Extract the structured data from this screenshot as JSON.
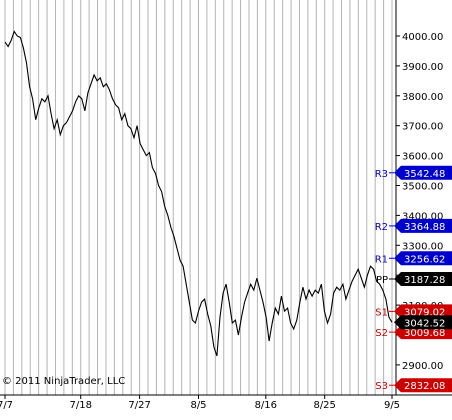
{
  "copyright": "© 2011 NinjaTrader, LLC",
  "chart_data": {
    "type": "line",
    "title": "",
    "xlabel": "",
    "ylabel": "",
    "ylim": [
      2830,
      4060
    ],
    "y_ticks": [
      "4000.00",
      "3900.00",
      "3800.00",
      "3700.00",
      "3600.00",
      "3500.00",
      "3400.00",
      "3300.00",
      "3200.00",
      "3100.00",
      "3000.00",
      "2900.00"
    ],
    "y_tick_values": [
      4000,
      3900,
      3800,
      3700,
      3600,
      3500,
      3400,
      3300,
      3200,
      3100,
      3000,
      2900
    ],
    "x_tick_labels": [
      "7/7",
      "7/18",
      "7/27",
      "8/5",
      "8/16",
      "8/25",
      "9/5"
    ],
    "x_tick_index": [
      0,
      9,
      16,
      23,
      31,
      38,
      46
    ],
    "vertical_grid": true,
    "horizontal_grid": false,
    "series": [
      {
        "color": "#000000",
        "values": [
          3980,
          3965,
          3985,
          4015,
          4000,
          3995,
          3960,
          3910,
          3830,
          3790,
          3720,
          3760,
          3790,
          3780,
          3800,
          3740,
          3690,
          3720,
          3670,
          3700,
          3710,
          3730,
          3750,
          3780,
          3800,
          3790,
          3750,
          3810,
          3840,
          3870,
          3850,
          3860,
          3830,
          3840,
          3820,
          3790,
          3770,
          3760,
          3720,
          3740,
          3700,
          3690,
          3660,
          3700,
          3640,
          3620,
          3600,
          3610,
          3560,
          3540,
          3500,
          3480,
          3430,
          3400,
          3360,
          3330,
          3290,
          3250,
          3230,
          3170,
          3110,
          3050,
          3040,
          3080,
          3110,
          3120,
          3070,
          3030,
          2960,
          2930,
          3060,
          3140,
          3170,
          3110,
          3040,
          3050,
          3000,
          3060,
          3110,
          3140,
          3170,
          3150,
          3190,
          3150,
          3110,
          3060,
          2980,
          3040,
          3090,
          3070,
          3130,
          3080,
          3090,
          3040,
          3020,
          3050,
          3110,
          3160,
          3120,
          3150,
          3130,
          3150,
          3140,
          3170,
          3080,
          3040,
          3070,
          3140,
          3160,
          3150,
          3170,
          3120,
          3150,
          3180,
          3200,
          3220,
          3190,
          3160,
          3200,
          3230,
          3220,
          3180,
          3170,
          3150,
          3120,
          3060,
          3042.52
        ]
      }
    ],
    "levels": [
      {
        "name": "R3",
        "value": 3542.48,
        "label": "3542.48",
        "color": "#0000cc"
      },
      {
        "name": "R2",
        "value": 3364.88,
        "label": "3364.88",
        "color": "#0000cc"
      },
      {
        "name": "R1",
        "value": 3256.62,
        "label": "3256.62",
        "color": "#0000cc"
      },
      {
        "name": "PP",
        "value": 3187.28,
        "label": "3187.28",
        "color": "#000000"
      },
      {
        "name": "S1",
        "value": 3079.02,
        "label": "3079.02",
        "color": "#cc0000"
      },
      {
        "name": "S2",
        "value": 3009.68,
        "label": "3009.68",
        "color": "#cc0000"
      },
      {
        "name": "S3",
        "value": 2832.08,
        "label": "2832.08",
        "color": "#cc0000"
      }
    ],
    "last_price": {
      "value": 3042.52,
      "label": "3042.52",
      "color": "#000000"
    }
  }
}
